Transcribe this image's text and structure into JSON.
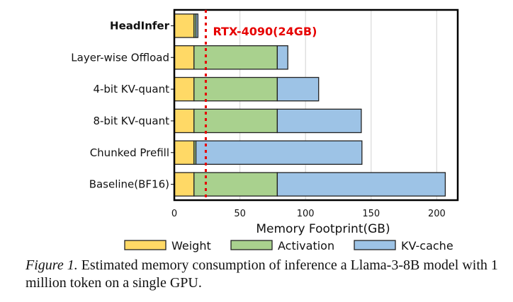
{
  "chart_data": {
    "type": "bar",
    "orientation": "horizontal",
    "stacked": true,
    "categories": [
      "HeadInfer",
      "Layer-wise Offload",
      "4-bit KV-quant",
      "8-bit KV-quant",
      "Chunked Prefill",
      "Baseline(BF16)"
    ],
    "highlight_category": "HeadInfer",
    "series": [
      {
        "name": "Weight",
        "color": "#FFD966",
        "values": [
          15,
          15,
          15,
          15,
          15,
          15
        ]
      },
      {
        "name": "Activation",
        "color": "#A9D18E",
        "values": [
          1.5,
          63.5,
          63.5,
          63.5,
          1.5,
          63.5
        ]
      },
      {
        "name": "KV-cache",
        "color": "#9DC3E6",
        "values": [
          1.5,
          8,
          31.5,
          64,
          126.5,
          128
        ]
      }
    ],
    "xlabel": "Memory Footprint(GB)",
    "ylabel": "",
    "xlim": [
      0,
      216
    ],
    "xticks": [
      0,
      50,
      100,
      150,
      200
    ],
    "grid": "vertical",
    "reference_line": {
      "value": 24,
      "label": "RTX-4090(24GB)",
      "color": "#E60000",
      "style": "dotted"
    },
    "legend": {
      "position": "bottom",
      "entries": [
        "Weight",
        "Activation",
        "KV-cache"
      ]
    }
  },
  "caption": {
    "prefix": "Figure 1.",
    "text": " Estimated memory consumption of inference a Llama-3-8B model with 1 million token on a single GPU."
  }
}
